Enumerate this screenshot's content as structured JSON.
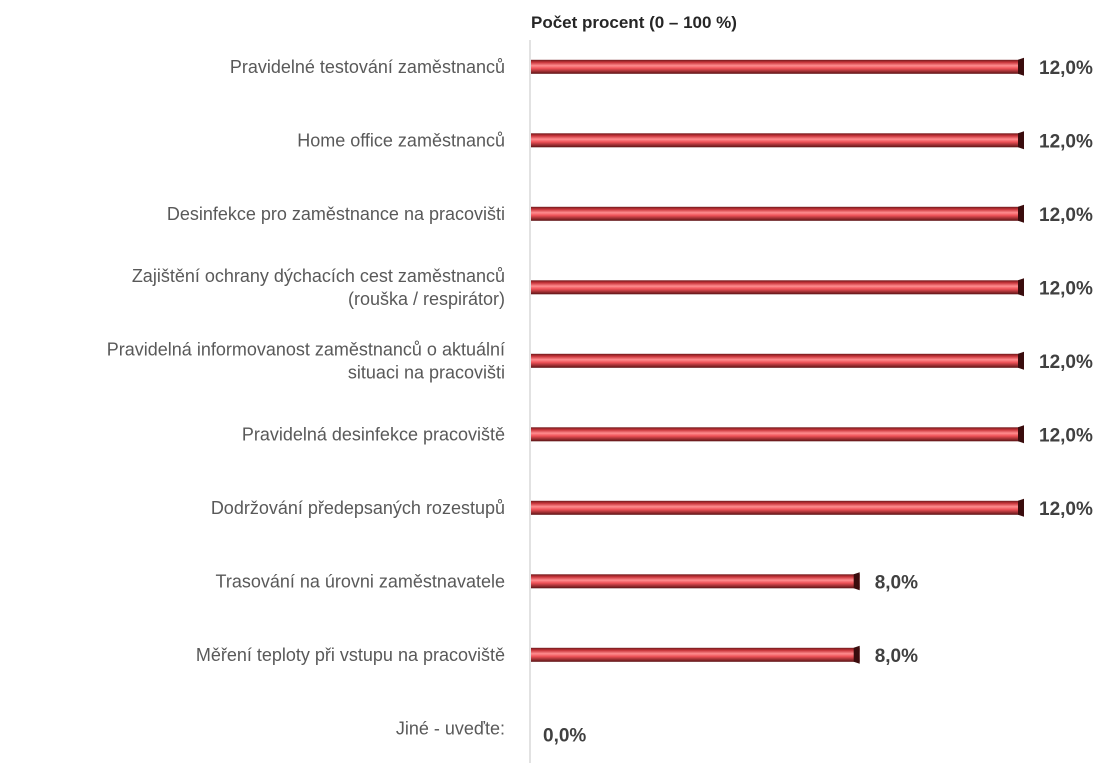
{
  "chart_data": {
    "type": "bar",
    "orientation": "horizontal",
    "title": "Počet procent  (0 – 100 %)",
    "categories": [
      [
        "Pravidelné testování zaměstnanců"
      ],
      [
        "Home office zaměstnanců"
      ],
      [
        "Desinfekce pro zaměstnance na pracovišti"
      ],
      [
        "Zajištění ochrany dýchacích cest zaměstnanců",
        "(rouška / respirátor)"
      ],
      [
        "Pravidelná informovanost zaměstnanců o aktuální",
        "situaci na pracovišti"
      ],
      [
        "Pravidelná desinfekce pracoviště"
      ],
      [
        "Dodržování předepsaných rozestupů"
      ],
      [
        "Trasování na úrovni zaměstnavatele"
      ],
      [
        "Měření teploty při vstupu na pracoviště"
      ],
      [
        "Jiné - uveďte:"
      ]
    ],
    "values": [
      12.0,
      12.0,
      12.0,
      12.0,
      12.0,
      12.0,
      12.0,
      8.0,
      8.0,
      0.0
    ],
    "value_labels": [
      "12,0%",
      "12,0%",
      "12,0%",
      "12,0%",
      "12,0%",
      "12,0%",
      "12,0%",
      "8,0%",
      "8,0%",
      "0,0%"
    ],
    "xlim": [
      0,
      12
    ],
    "grid": false,
    "legend": "none",
    "bar_color": "#e8484e"
  }
}
